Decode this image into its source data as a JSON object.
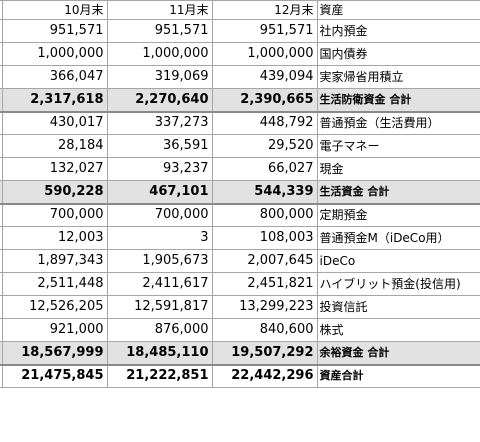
{
  "header": {
    "m10": "10月末",
    "m11": "11月末",
    "m12": "12月末",
    "label": "資産"
  },
  "rows": [
    {
      "m10": "951,571",
      "m11": "951,571",
      "m12": "951,571",
      "label": "社内預金"
    },
    {
      "m10": "1,000,000",
      "m11": "1,000,000",
      "m12": "1,000,000",
      "label": "国内債券"
    },
    {
      "m10": "366,047",
      "m11": "319,069",
      "m12": "439,094",
      "label": "実家帰省用積立"
    },
    {
      "m10": "2,317,618",
      "m11": "2,270,640",
      "m12": "2,390,665",
      "label": "生活防衛資金 合計"
    },
    {
      "m10": "430,017",
      "m11": "337,273",
      "m12": "448,792",
      "label": "普通預金（生活費用）"
    },
    {
      "m10": "28,184",
      "m11": "36,591",
      "m12": "29,520",
      "label": "電子マネー"
    },
    {
      "m10": "132,027",
      "m11": "93,237",
      "m12": "66,027",
      "label": "現金"
    },
    {
      "m10": "590,228",
      "m11": "467,101",
      "m12": "544,339",
      "label": "生活資金 合計"
    },
    {
      "m10": "700,000",
      "m11": "700,000",
      "m12": "800,000",
      "label": "定期預金"
    },
    {
      "m10": "12,003",
      "m11": "3",
      "m12": "108,003",
      "label": "普通預金M（iDeCo用）"
    },
    {
      "m10": "1,897,343",
      "m11": "1,905,673",
      "m12": "2,007,645",
      "label": "iDeCo"
    },
    {
      "m10": "2,511,448",
      "m11": "2,411,617",
      "m12": "2,451,821",
      "label": "ハイブリット預金(投信用)"
    },
    {
      "m10": "12,526,205",
      "m11": "12,591,817",
      "m12": "13,299,223",
      "label": "投資信託"
    },
    {
      "m10": "921,000",
      "m11": "876,000",
      "m12": "840,600",
      "label": "株式"
    },
    {
      "m10": "18,567,999",
      "m11": "18,485,110",
      "m12": "19,507,292",
      "label": "余裕資金 合計"
    },
    {
      "m10": "21,475,845",
      "m11": "21,222,851",
      "m12": "22,442,296",
      "label": "資産合計"
    }
  ],
  "colors": {
    "subtotal_fill": "#e2e2e2",
    "grid": "#a6a6a6"
  }
}
